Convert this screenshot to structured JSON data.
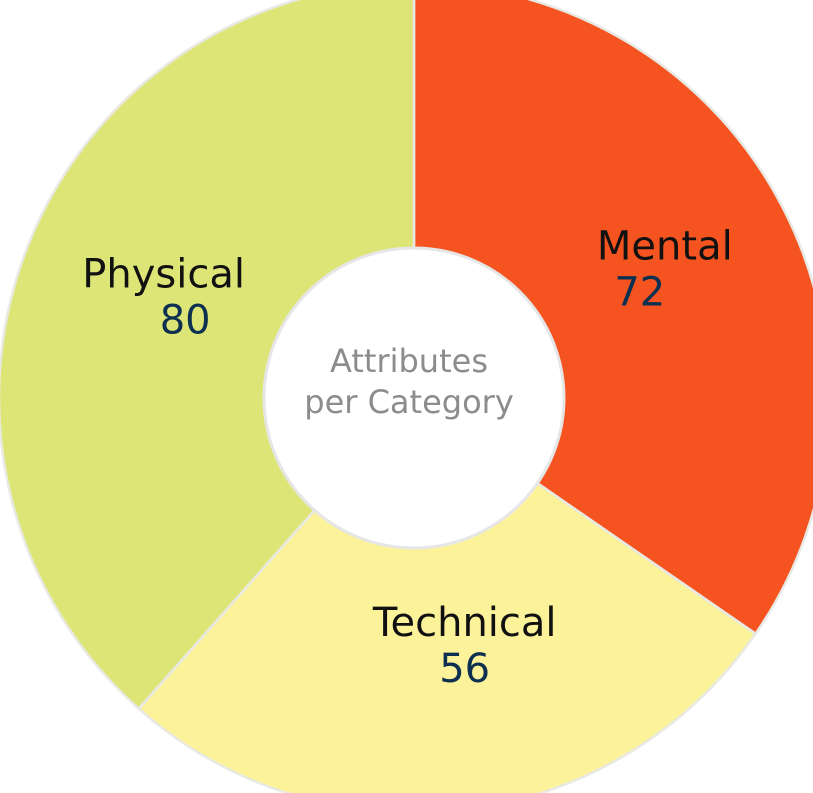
{
  "chart_data": {
    "type": "pie",
    "donut": true,
    "categories": [
      "Mental",
      "Technical",
      "Physical"
    ],
    "values": [
      72,
      56,
      80
    ],
    "center_label": [
      "Attributes",
      "per Category"
    ],
    "colors": [
      "#F55421",
      "#FCF29A",
      "#DEE577"
    ],
    "value_label_color": "#0D3050",
    "center_text_color": "#8C8C8C",
    "legend": "none",
    "start_direction": "top",
    "rotation": "clockwise"
  }
}
